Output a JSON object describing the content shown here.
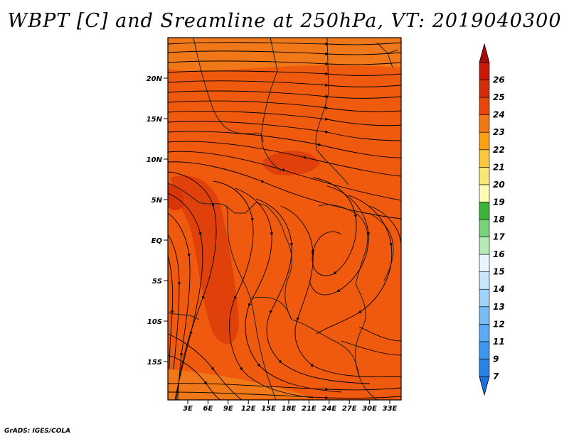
{
  "title": "WBPT [C] and Sreamline at 250hPa, VT: 2019040300",
  "credit": "GrADS: IGES/COLA",
  "map": {
    "lat_ticks": [
      "20N",
      "15N",
      "10N",
      "5N",
      "EQ",
      "5S",
      "10S",
      "15S"
    ],
    "lon_ticks": [
      "3E",
      "6E",
      "9E",
      "12E",
      "15E",
      "18E",
      "21E",
      "24E",
      "27E",
      "30E",
      "33E"
    ],
    "fill_colors": {
      "base": "#f05a0f",
      "light": "#f07818",
      "dark": "#e0400a",
      "darker": "#d8350a"
    }
  },
  "colorbar": {
    "levels": [
      "7",
      "9",
      "11",
      "12",
      "13",
      "14",
      "15",
      "16",
      "17",
      "18",
      "19",
      "20",
      "21",
      "22",
      "23",
      "24",
      "25",
      "26"
    ],
    "colors": [
      "#1e6ee6",
      "#2a82e6",
      "#3c96f0",
      "#5aaaf5",
      "#78bef5",
      "#a0d2fa",
      "#c8e6fa",
      "#e6f5ff",
      "#b4ebb4",
      "#78d278",
      "#3cb43c",
      "#fffab4",
      "#fae678",
      "#fac83c",
      "#faa014",
      "#f07814",
      "#e6460a",
      "#d22d0a",
      "#c8190a",
      "#aa0a0a"
    ]
  }
}
